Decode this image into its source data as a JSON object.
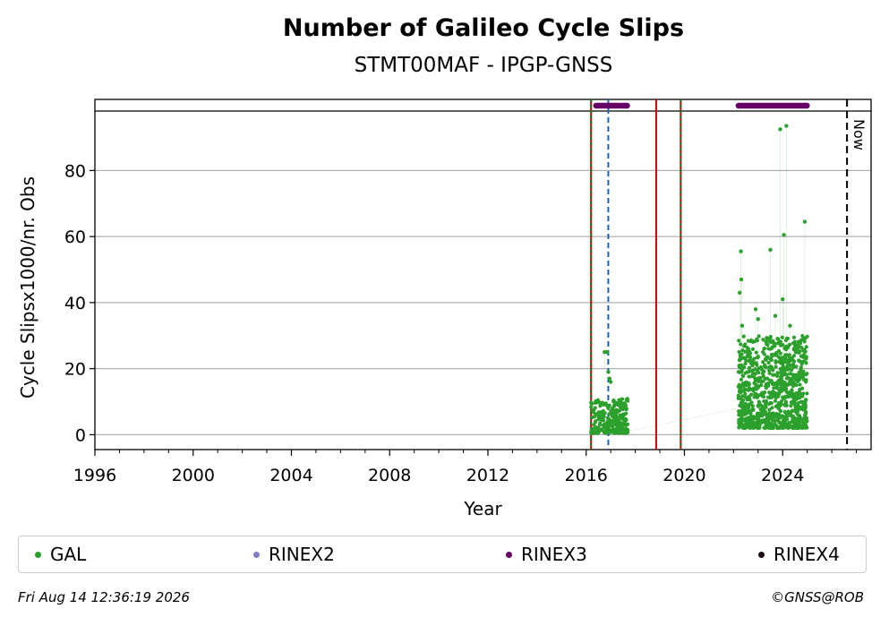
{
  "chart_data": {
    "type": "scatter",
    "title": "Number of Galileo Cycle Slips",
    "subtitle": "STMT00MAF - IPGP-GNSS",
    "xlabel": "Year",
    "ylabel": "Cycle Slipsx1000/nr. Obs",
    "xlim": [
      1996,
      2027.6
    ],
    "ylim": [
      -4.5,
      98
    ],
    "x_ticks": [
      1996,
      2000,
      2004,
      2008,
      2012,
      2016,
      2020,
      2024
    ],
    "y_ticks": [
      0,
      20,
      40,
      60,
      80
    ],
    "grid": "horizontal",
    "legend_position": "bottom",
    "series": [
      {
        "name": "GAL",
        "color": "#2ca02c",
        "clusters": [
          {
            "x_start": 2016.2,
            "x_end": 2017.7,
            "typical_min": 0.5,
            "typical_max": 11
          },
          {
            "x_start": 2022.2,
            "x_end": 2025.0,
            "typical_min": 2,
            "typical_max": 30
          }
        ],
        "points": [
          {
            "x": 2016.75,
            "y": 25
          },
          {
            "x": 2016.85,
            "y": 25
          },
          {
            "x": 2016.9,
            "y": 19
          },
          {
            "x": 2016.95,
            "y": 17
          },
          {
            "x": 2017.0,
            "y": 16
          },
          {
            "x": 2022.25,
            "y": 43
          },
          {
            "x": 2022.3,
            "y": 55.5
          },
          {
            "x": 2022.32,
            "y": 47
          },
          {
            "x": 2022.35,
            "y": 33
          },
          {
            "x": 2022.9,
            "y": 38
          },
          {
            "x": 2023.0,
            "y": 35
          },
          {
            "x": 2023.5,
            "y": 56
          },
          {
            "x": 2023.7,
            "y": 36
          },
          {
            "x": 2023.9,
            "y": 92.5
          },
          {
            "x": 2024.0,
            "y": 41
          },
          {
            "x": 2024.05,
            "y": 60.5
          },
          {
            "x": 2024.15,
            "y": 93.5
          },
          {
            "x": 2024.3,
            "y": 33
          },
          {
            "x": 2024.9,
            "y": 64.5
          },
          {
            "x": 2024.95,
            "y": 23
          }
        ]
      },
      {
        "name": "RINEX2",
        "color": "#7f7fbf",
        "ranges": []
      },
      {
        "name": "RINEX3",
        "color": "#660066",
        "ranges": [
          [
            2016.4,
            2017.3
          ],
          [
            2017.4,
            2017.7
          ],
          [
            2022.2,
            2025.0
          ]
        ]
      },
      {
        "name": "RINEX4",
        "color": "#1a0a1a",
        "ranges": []
      }
    ],
    "vertical_lines": [
      {
        "x": 2016.2,
        "style": "red-green-dotted"
      },
      {
        "x": 2016.9,
        "style": "blue-dashed",
        "color": "#1f5fa8"
      },
      {
        "x": 2018.85,
        "style": "red-solid",
        "color": "#cc0000"
      },
      {
        "x": 2019.85,
        "style": "red-green-dotted"
      },
      {
        "x": 2026.62,
        "style": "black-dashed",
        "color": "#000000",
        "label": "Now"
      }
    ]
  },
  "legend": {
    "items": [
      {
        "label": "GAL",
        "color": "#2ca02c"
      },
      {
        "label": "RINEX2",
        "color": "#7f7fbf"
      },
      {
        "label": "RINEX3",
        "color": "#660066"
      },
      {
        "label": "RINEX4",
        "color": "#1a0a1a"
      }
    ]
  },
  "footer": {
    "timestamp": "Fri Aug 14 12:36:19 2026",
    "credit": "©GNSS@ROB"
  }
}
